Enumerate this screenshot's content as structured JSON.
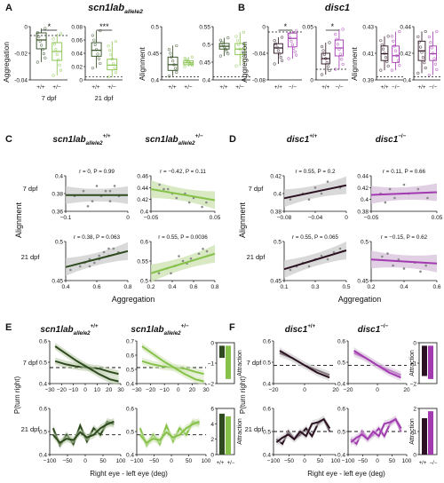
{
  "colors": {
    "scn_wt": "#2e4a1e",
    "scn_mut": "#86c24a",
    "disc_wt": "#2a1020",
    "disc_mut": "#a23bb0",
    "scatter_band_scn": "#cfe3b4",
    "scatter_band_disc": "#d9c3dd",
    "gray_band": "#cfcfcf",
    "point": "#8a8a8a",
    "dash": "#111111"
  },
  "panel_letters": [
    "A",
    "B",
    "C",
    "D",
    "E",
    "F"
  ],
  "panel_A": {
    "title": "scn1lab",
    "title_sub": "allele2",
    "ylabel_agg": "Aggregation",
    "ylabel_align": "Alignment",
    "group_labels": [
      "7 dpf",
      "21 dpf"
    ],
    "geno_labels": [
      "+/+",
      "+/−"
    ],
    "sig_7dpf": "*",
    "sig_21dpf": "***",
    "agg7_ticks": [
      "0",
      "-0.02",
      "-0.04"
    ],
    "agg21_ticks": [
      "0.08",
      "0.06",
      "0.04",
      "0.02",
      "0"
    ],
    "align7_ticks": [
      "0.5",
      "0.45",
      "0.4"
    ],
    "align21_ticks": [
      "0.55",
      "0.5",
      "0.45",
      "0.4"
    ]
  },
  "panel_B": {
    "title": "disc1",
    "ylabel_agg": "Aggregation",
    "ylabel_align": "Alignment",
    "geno_labels": [
      "+/+",
      "−/−"
    ],
    "sig_agg7": "*",
    "sig_agg21": "*",
    "agg7_ticks": [
      "0",
      "-0.04",
      "-0.08"
    ],
    "agg21_ticks": [
      "0.05",
      "0"
    ],
    "align7_ticks": [
      "0.43",
      "0.41",
      "0.39"
    ],
    "align21_ticks": [
      "0.44",
      "0.42",
      "0.4"
    ]
  },
  "panel_C": {
    "title_wt": "scn1lab",
    "title_wt_sub": "allele2",
    "title_wt_sup": "+/+",
    "title_mut": "scn1lab",
    "title_mut_sub": "allele2",
    "title_mut_sup": "+/−",
    "row_labels": [
      "7 dpf",
      "21 dpf"
    ],
    "ylabel": "Alignment",
    "xlabel": "Aggregation",
    "stats": [
      "r = 0, P = 0.99",
      "r = −0.42, P = 0.11",
      "r = 0.38, P = 0.063",
      "r = 0.55, P = 0.0036"
    ],
    "ticks_y_7wt": [
      "0.4",
      "0.38",
      "0.36"
    ],
    "ticks_y_7mut": [
      "0.46",
      "0.44",
      "0.42",
      "0.4"
    ],
    "ticks_y_21wt": [
      "0.5",
      "0.45"
    ],
    "ticks_y_21mut": [
      "0.6",
      "0.55",
      "0.5"
    ],
    "ticks_x_7wt": [
      "−0.1",
      "0"
    ],
    "ticks_x_7mut": [
      "−0.05",
      "0.05"
    ],
    "ticks_x_21wt": [
      "0.4",
      "0.6",
      "0.8"
    ],
    "ticks_x_21mut": [
      "0.2",
      "0.4",
      "0.6",
      "0.8"
    ]
  },
  "panel_D": {
    "title_wt": "disc1",
    "title_wt_sup": "+/+",
    "title_mut": "disc1",
    "title_mut_sup": "−/−",
    "row_labels": [
      "7 dpf",
      "21 dpf"
    ],
    "ylabel": "Alignment",
    "xlabel": "Aggregation",
    "stats": [
      "r = 0.55, P = 0.2",
      "r = 0.11, P = 0.66",
      "r = 0.55, P = 0.065",
      "r = −0.15, P = 0.62"
    ],
    "ticks_y_7wt": [
      "0.42",
      "0.4",
      "0.38"
    ],
    "ticks_y_7mut": [
      "0.44",
      "0.42",
      "0.4",
      "0.38"
    ],
    "ticks_y_21wt": [
      "0.5",
      "0.45"
    ],
    "ticks_y_21mut": [
      "0.5",
      "0.45"
    ],
    "ticks_x_7wt": [
      "−0.08",
      "−0.04",
      "0"
    ],
    "ticks_x_7mut": [
      "−0.05",
      "0.05"
    ],
    "ticks_x_21wt": [
      "0.1",
      "0.3",
      "0.5"
    ],
    "ticks_x_21mut": [
      "0.2",
      "0.4",
      "0.6"
    ]
  },
  "panel_E": {
    "title_wt": "scn1lab",
    "title_wt_sub": "allele2",
    "title_wt_sup": "+/+",
    "title_mut": "scn1lab",
    "title_mut_sub": "allele2",
    "title_mut_sup": "+/−",
    "row_labels": [
      "7 dpf",
      "21 dpf"
    ],
    "ylabel": "P(turn right)",
    "xlabel": "Right eye - left eye (deg)",
    "attraction_label": "Attraction",
    "geno_labels": [
      "+/+",
      "+/−"
    ],
    "x7_ticks": [
      "−30",
      "−20",
      "−10",
      "0",
      "10",
      "20",
      "30"
    ],
    "x21_ticks": [
      "−100",
      "−50",
      "0",
      "50",
      "100"
    ],
    "y_ticks": [
      "0.7",
      "0.6",
      "0.5",
      "0.4"
    ],
    "attr7_ticks": [
      "0",
      "−1",
      "−2"
    ],
    "attr21_ticks": [
      "6",
      "4",
      "2",
      "0"
    ]
  },
  "panel_F": {
    "title_wt": "disc1",
    "title_wt_sup": "+/+",
    "title_mut": "disc1",
    "title_mut_sup": "−/−",
    "row_labels": [
      "7 dpf",
      "21 dpf"
    ],
    "ylabel": "P(turn right)",
    "xlabel": "Right eye - left eye (deg)",
    "attraction_label": "Attraction",
    "geno_labels": [
      "+/+",
      "−/−"
    ],
    "x7_ticks": [
      "−20",
      "0",
      "20"
    ],
    "x21_ticks": [
      "−100",
      "−50",
      "0",
      "50",
      "100"
    ],
    "y_ticks": [
      "0.6",
      "0.5",
      "0.4"
    ],
    "attr7_ticks": [
      "0",
      "−1",
      "−2"
    ],
    "attr21_ticks": [
      "2",
      "1",
      "0"
    ]
  },
  "chart_data": [
    {
      "id": "A-agg7",
      "type": "box",
      "title": "scn1lab allele2 aggregation 7 dpf",
      "categories": [
        "+/+",
        "+/−"
      ],
      "ylabel": "Aggregation",
      "ylim": [
        -0.05,
        0.01
      ],
      "boxes": [
        {
          "q1": -0.015,
          "median": -0.005,
          "q3": 0.003,
          "min": -0.03,
          "max": 0.008
        },
        {
          "q1": -0.028,
          "median": -0.018,
          "q3": -0.008,
          "min": -0.045,
          "max": 0.002
        }
      ],
      "significance": "*"
    },
    {
      "id": "A-agg21",
      "type": "box",
      "title": "scn1lab allele2 aggregation 21 dpf",
      "categories": [
        "+/+",
        "+/−"
      ],
      "ylim": [
        -0.005,
        0.085
      ],
      "boxes": [
        {
          "q1": 0.035,
          "median": 0.045,
          "q3": 0.058,
          "min": 0.015,
          "max": 0.078
        },
        {
          "q1": 0.012,
          "median": 0.02,
          "q3": 0.03,
          "min": 0.0,
          "max": 0.06
        }
      ],
      "significance": "***"
    },
    {
      "id": "A-align7",
      "type": "box",
      "title": "scn1lab allele2 alignment 7 dpf",
      "categories": [
        "+/+",
        "+/−"
      ],
      "ylabel": "Alignment",
      "ylim": [
        0.38,
        0.52
      ],
      "boxes": [
        {
          "q1": 0.405,
          "median": 0.42,
          "q3": 0.44,
          "min": 0.39,
          "max": 0.47
        },
        {
          "q1": 0.42,
          "median": 0.425,
          "q3": 0.43,
          "min": 0.415,
          "max": 0.44
        }
      ]
    },
    {
      "id": "A-align21",
      "type": "box",
      "title": "scn1lab allele2 alignment 21 dpf",
      "categories": [
        "+/+",
        "+/−"
      ],
      "ylim": [
        0.38,
        0.57
      ],
      "boxes": [
        {
          "q1": 0.49,
          "median": 0.5,
          "q3": 0.51,
          "min": 0.465,
          "max": 0.53
        },
        {
          "q1": 0.47,
          "median": 0.49,
          "q3": 0.51,
          "min": 0.43,
          "max": 0.55
        }
      ]
    },
    {
      "id": "B-agg7",
      "type": "box",
      "title": "disc1 aggregation 7 dpf",
      "categories": [
        "+/+",
        "−/−"
      ],
      "ylim": [
        -0.09,
        0.01
      ],
      "boxes": [
        {
          "q1": -0.04,
          "median": -0.03,
          "q3": -0.022,
          "min": -0.06,
          "max": -0.01
        },
        {
          "q1": -0.028,
          "median": -0.012,
          "q3": -0.002,
          "min": -0.05,
          "max": 0.002
        }
      ],
      "significance": "*"
    },
    {
      "id": "B-agg21",
      "type": "box",
      "title": "disc1 aggregation 21 dpf",
      "categories": [
        "+/+",
        "−/−"
      ],
      "ylim": [
        -0.02,
        0.08
      ],
      "boxes": [
        {
          "q1": 0.01,
          "median": 0.02,
          "q3": 0.03,
          "min": -0.01,
          "max": 0.05
        },
        {
          "q1": 0.025,
          "median": 0.04,
          "q3": 0.055,
          "min": 0.0,
          "max": 0.075
        }
      ],
      "significance": "*"
    },
    {
      "id": "B-align7",
      "type": "box",
      "title": "disc1 alignment 7 dpf",
      "categories": [
        "+/+",
        "−/−"
      ],
      "ylim": [
        0.385,
        0.44
      ],
      "boxes": [
        {
          "q1": 0.405,
          "median": 0.412,
          "q3": 0.42,
          "min": 0.395,
          "max": 0.43
        },
        {
          "q1": 0.403,
          "median": 0.41,
          "q3": 0.42,
          "min": 0.395,
          "max": 0.435
        }
      ]
    },
    {
      "id": "B-align21",
      "type": "box",
      "title": "disc1 alignment 21 dpf",
      "categories": [
        "+/+",
        "−/−"
      ],
      "ylim": [
        0.395,
        0.45
      ],
      "boxes": [
        {
          "q1": 0.415,
          "median": 0.425,
          "q3": 0.435,
          "min": 0.402,
          "max": 0.445
        },
        {
          "q1": 0.415,
          "median": 0.422,
          "q3": 0.43,
          "min": 0.4,
          "max": 0.445
        }
      ]
    },
    {
      "id": "C-7wt",
      "type": "scatter",
      "title": "scn1lab allele2 +/+ 7 dpf",
      "xlim": [
        -0.12,
        0.02
      ],
      "ylim": [
        0.35,
        0.42
      ],
      "x": [
        -0.1,
        -0.08,
        -0.06,
        -0.05,
        -0.04,
        -0.03,
        -0.02,
        -0.01,
        0.0,
        -0.07,
        -0.02
      ],
      "y": [
        0.38,
        0.39,
        0.37,
        0.4,
        0.38,
        0.39,
        0.37,
        0.4,
        0.38,
        0.36,
        0.39
      ],
      "fit": [
        [
          -0.12,
          0.382
        ],
        [
          0.02,
          0.382
        ]
      ]
    },
    {
      "id": "C-7mut",
      "type": "scatter",
      "title": "scn1lab allele2 +/− 7 dpf",
      "xlim": [
        -0.08,
        0.07
      ],
      "ylim": [
        0.39,
        0.47
      ],
      "x": [
        -0.06,
        -0.04,
        -0.03,
        -0.02,
        0.0,
        0.01,
        0.02,
        0.04,
        0.05,
        -0.05
      ],
      "y": [
        0.45,
        0.44,
        0.43,
        0.42,
        0.43,
        0.41,
        0.42,
        0.4,
        0.41,
        0.44
      ],
      "fit": [
        [
          -0.08,
          0.44
        ],
        [
          0.07,
          0.415
        ]
      ]
    },
    {
      "id": "C-21wt",
      "type": "scatter",
      "title": "scn1lab allele2 +/+ 21 dpf",
      "xlim": [
        0.25,
        0.9
      ],
      "ylim": [
        0.42,
        0.53
      ],
      "x": [
        0.3,
        0.4,
        0.45,
        0.5,
        0.55,
        0.6,
        0.65,
        0.7,
        0.75,
        0.8,
        0.5,
        0.6,
        0.7
      ],
      "y": [
        0.45,
        0.46,
        0.47,
        0.48,
        0.47,
        0.49,
        0.5,
        0.49,
        0.51,
        0.5,
        0.46,
        0.48,
        0.51
      ],
      "fit": [
        [
          0.25,
          0.458
        ],
        [
          0.9,
          0.503
        ]
      ]
    },
    {
      "id": "C-21mut",
      "type": "scatter",
      "title": "scn1lab allele2 +/− 21 dpf",
      "xlim": [
        0.1,
        0.9
      ],
      "ylim": [
        0.47,
        0.63
      ],
      "x": [
        0.2,
        0.3,
        0.35,
        0.4,
        0.5,
        0.55,
        0.6,
        0.7,
        0.75,
        0.8,
        0.45
      ],
      "y": [
        0.5,
        0.52,
        0.5,
        0.53,
        0.55,
        0.54,
        0.56,
        0.58,
        0.6,
        0.59,
        0.57
      ],
      "fit": [
        [
          0.1,
          0.5
        ],
        [
          0.9,
          0.58
        ]
      ]
    },
    {
      "id": "D-7wt",
      "type": "scatter",
      "title": "disc1 +/+ 7 dpf",
      "xlim": [
        -0.09,
        0.01
      ],
      "ylim": [
        0.37,
        0.43
      ],
      "x": [
        -0.08,
        -0.06,
        -0.05,
        -0.04,
        -0.03,
        -0.02,
        0.0
      ],
      "y": [
        0.39,
        0.4,
        0.39,
        0.41,
        0.4,
        0.42,
        0.41
      ],
      "fit": [
        [
          -0.09,
          0.392
        ],
        [
          0.01,
          0.414
        ]
      ]
    },
    {
      "id": "D-7mut",
      "type": "scatter",
      "title": "disc1 −/− 7 dpf",
      "xlim": [
        -0.07,
        0.07
      ],
      "ylim": [
        0.37,
        0.45
      ],
      "x": [
        -0.05,
        -0.03,
        -0.02,
        0.0,
        0.01,
        0.03,
        0.05,
        -0.04
      ],
      "y": [
        0.41,
        0.42,
        0.4,
        0.43,
        0.41,
        0.42,
        0.4,
        0.39
      ],
      "fit": [
        [
          -0.07,
          0.407
        ],
        [
          0.07,
          0.413
        ]
      ]
    },
    {
      "id": "D-21wt",
      "type": "scatter",
      "title": "disc1 +/+ 21 dpf",
      "xlim": [
        0.05,
        0.55
      ],
      "ylim": [
        0.42,
        0.53
      ],
      "x": [
        0.1,
        0.15,
        0.2,
        0.25,
        0.3,
        0.35,
        0.4,
        0.45,
        0.5
      ],
      "y": [
        0.45,
        0.46,
        0.47,
        0.46,
        0.48,
        0.49,
        0.48,
        0.5,
        0.51
      ],
      "fit": [
        [
          0.05,
          0.452
        ],
        [
          0.55,
          0.505
        ]
      ]
    },
    {
      "id": "D-21mut",
      "type": "scatter",
      "title": "disc1 −/− 21 dpf",
      "xlim": [
        0.1,
        0.7
      ],
      "ylim": [
        0.4,
        0.53
      ],
      "x": [
        0.2,
        0.3,
        0.35,
        0.4,
        0.5,
        0.55,
        0.6,
        0.25
      ],
      "y": [
        0.48,
        0.45,
        0.47,
        0.44,
        0.46,
        0.43,
        0.45,
        0.49
      ],
      "fit": [
        [
          0.1,
          0.47
        ],
        [
          0.7,
          0.457
        ]
      ]
    },
    {
      "id": "E-7",
      "type": "line",
      "title": "scn1lab allele2 P(turn right) 7 dpf",
      "xlim": [
        -35,
        30
      ],
      "ylim": [
        0.35,
        0.75
      ],
      "series": [
        {
          "name": "+/+",
          "x": [
            -30,
            -20,
            -10,
            0,
            10,
            20,
            28
          ],
          "y": [
            0.56,
            0.53,
            0.51,
            0.5,
            0.49,
            0.46,
            0.44
          ]
        },
        {
          "name": "+/−",
          "x": [
            -30,
            -20,
            -10,
            0,
            10,
            20,
            28
          ],
          "y": [
            0.7,
            0.63,
            0.56,
            0.5,
            0.44,
            0.39,
            0.37
          ]
        }
      ]
    },
    {
      "id": "E-21",
      "type": "line",
      "title": "scn1lab allele2 P(turn right) 21 dpf",
      "xlim": [
        -110,
        100
      ],
      "ylim": [
        0.35,
        0.7
      ],
      "series": [
        {
          "name": "+/+",
          "x": [
            -100,
            -80,
            -60,
            -40,
            -20,
            0,
            20,
            40,
            60,
            80
          ],
          "y": [
            0.55,
            0.42,
            0.5,
            0.43,
            0.57,
            0.45,
            0.55,
            0.5,
            0.6,
            0.58
          ]
        },
        {
          "name": "+/−",
          "x": [
            -100,
            -80,
            -60,
            -40,
            -20,
            0,
            20,
            40,
            60,
            80
          ],
          "y": [
            0.5,
            0.44,
            0.47,
            0.46,
            0.52,
            0.48,
            0.5,
            0.55,
            0.58,
            0.6
          ]
        }
      ]
    },
    {
      "id": "E-attr",
      "type": "bar",
      "categories": [
        "+/+",
        "+/−"
      ],
      "ylabel": "Attraction",
      "series": [
        {
          "name": "7 dpf",
          "values": [
            -0.8,
            -2.2
          ]
        },
        {
          "name": "21 dpf",
          "values": [
            6.2,
            5.8
          ]
        }
      ]
    },
    {
      "id": "F-7",
      "type": "line",
      "title": "disc1 P(turn right) 7 dpf",
      "xlim": [
        -25,
        25
      ],
      "ylim": [
        0.35,
        0.7
      ],
      "series": [
        {
          "name": "+/+",
          "x": [
            -20,
            -10,
            0,
            10,
            20
          ],
          "y": [
            0.6,
            0.56,
            0.5,
            0.46,
            0.42
          ]
        },
        {
          "name": "−/−",
          "x": [
            -20,
            -10,
            0,
            10,
            20
          ],
          "y": [
            0.62,
            0.56,
            0.5,
            0.44,
            0.4
          ]
        }
      ]
    },
    {
      "id": "F-21",
      "type": "line",
      "title": "disc1 P(turn right) 21 dpf",
      "xlim": [
        -110,
        100
      ],
      "ylim": [
        0.35,
        0.65
      ],
      "series": [
        {
          "name": "+/+",
          "x": [
            -100,
            -80,
            -60,
            -40,
            -20,
            0,
            20,
            40,
            60,
            80
          ],
          "y": [
            0.45,
            0.42,
            0.5,
            0.45,
            0.48,
            0.52,
            0.47,
            0.55,
            0.58,
            0.5
          ]
        },
        {
          "name": "−/−",
          "x": [
            -100,
            -80,
            -60,
            -40,
            -20,
            0,
            20,
            40,
            60,
            80
          ],
          "y": [
            0.43,
            0.46,
            0.48,
            0.45,
            0.5,
            0.47,
            0.55,
            0.56,
            0.58,
            0.52
          ]
        }
      ]
    },
    {
      "id": "F-attr",
      "type": "bar",
      "categories": [
        "+/+",
        "−/−"
      ],
      "ylabel": "Attraction",
      "series": [
        {
          "name": "7 dpf",
          "values": [
            -2.0,
            -2.2
          ]
        },
        {
          "name": "21 dpf",
          "values": [
            2.6,
            3.1
          ]
        }
      ]
    }
  ]
}
